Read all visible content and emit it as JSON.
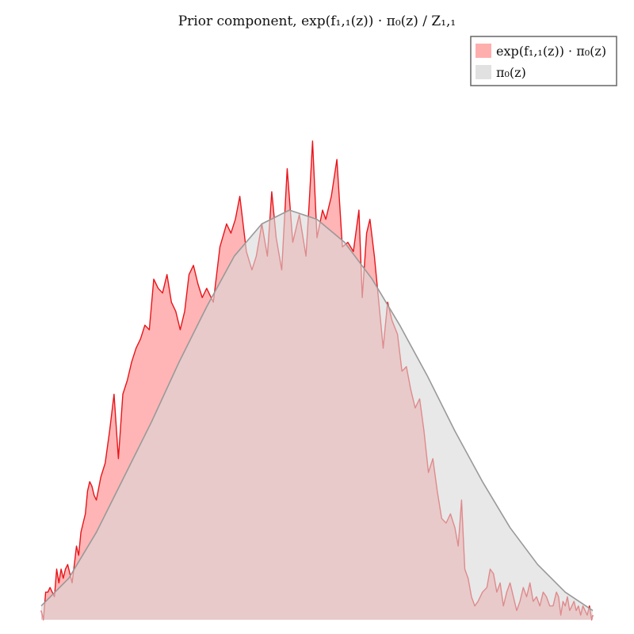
{
  "chart_data": {
    "type": "area",
    "title": "Prior component, exp(f₁,₁(z)) · π₀(z) / Z₁,₁",
    "xlabel": "",
    "ylabel": "",
    "axes_visible": false,
    "grid": false,
    "legend_position": "top-right",
    "xlim": [
      0,
      1
    ],
    "ylim": [
      0,
      1.04
    ],
    "series": [
      {
        "name": "exp(f₁,₁(z)) · π₀(z)",
        "color": "#ff6b6b",
        "fill_opacity": 0.5,
        "line_color": "#e8141a",
        "x": [
          0.0,
          0.004,
          0.008,
          0.012,
          0.016,
          0.02,
          0.024,
          0.028,
          0.032,
          0.036,
          0.04,
          0.044,
          0.048,
          0.052,
          0.056,
          0.06,
          0.064,
          0.068,
          0.072,
          0.076,
          0.08,
          0.084,
          0.088,
          0.092,
          0.096,
          0.1,
          0.108,
          0.116,
          0.124,
          0.132,
          0.14,
          0.148,
          0.156,
          0.164,
          0.172,
          0.18,
          0.188,
          0.196,
          0.204,
          0.212,
          0.22,
          0.228,
          0.236,
          0.244,
          0.252,
          0.26,
          0.268,
          0.276,
          0.284,
          0.292,
          0.3,
          0.312,
          0.324,
          0.336,
          0.344,
          0.352,
          0.36,
          0.372,
          0.382,
          0.39,
          0.4,
          0.41,
          0.418,
          0.426,
          0.436,
          0.446,
          0.456,
          0.468,
          0.48,
          0.486,
          0.492,
          0.5,
          0.51,
          0.516,
          0.526,
          0.536,
          0.546,
          0.556,
          0.566,
          0.576,
          0.582,
          0.59,
          0.596,
          0.604,
          0.612,
          0.62,
          0.628,
          0.636,
          0.646,
          0.654,
          0.662,
          0.67,
          0.678,
          0.686,
          0.694,
          0.702,
          0.71,
          0.718,
          0.726,
          0.734,
          0.742,
          0.75,
          0.756,
          0.762,
          0.768,
          0.774,
          0.78,
          0.786,
          0.792,
          0.8,
          0.808,
          0.814,
          0.82,
          0.826,
          0.832,
          0.838,
          0.844,
          0.85,
          0.856,
          0.862,
          0.868,
          0.874,
          0.88,
          0.886,
          0.892,
          0.898,
          0.904,
          0.91,
          0.916,
          0.922,
          0.928,
          0.934,
          0.938,
          0.942,
          0.946,
          0.95,
          0.954,
          0.958,
          0.962,
          0.966,
          0.97,
          0.974,
          0.978,
          0.982,
          0.986,
          0.99,
          0.994,
          0.998,
          1.0
        ],
        "y": [
          0.02,
          0.0,
          0.06,
          0.06,
          0.07,
          0.06,
          0.05,
          0.11,
          0.08,
          0.11,
          0.09,
          0.11,
          0.12,
          0.1,
          0.08,
          0.12,
          0.16,
          0.14,
          0.19,
          0.21,
          0.23,
          0.28,
          0.3,
          0.29,
          0.27,
          0.26,
          0.31,
          0.34,
          0.41,
          0.49,
          0.35,
          0.49,
          0.52,
          0.56,
          0.59,
          0.61,
          0.64,
          0.63,
          0.74,
          0.72,
          0.71,
          0.75,
          0.69,
          0.67,
          0.63,
          0.67,
          0.75,
          0.77,
          0.73,
          0.7,
          0.72,
          0.69,
          0.81,
          0.86,
          0.84,
          0.87,
          0.92,
          0.8,
          0.76,
          0.79,
          0.86,
          0.79,
          0.93,
          0.83,
          0.76,
          0.98,
          0.82,
          0.88,
          0.79,
          0.91,
          1.04,
          0.83,
          0.89,
          0.87,
          0.92,
          1.0,
          0.81,
          0.82,
          0.8,
          0.89,
          0.7,
          0.84,
          0.87,
          0.79,
          0.69,
          0.59,
          0.69,
          0.65,
          0.62,
          0.54,
          0.55,
          0.5,
          0.46,
          0.48,
          0.41,
          0.32,
          0.35,
          0.28,
          0.22,
          0.21,
          0.23,
          0.2,
          0.16,
          0.26,
          0.11,
          0.09,
          0.05,
          0.03,
          0.04,
          0.06,
          0.07,
          0.11,
          0.1,
          0.06,
          0.08,
          0.03,
          0.06,
          0.08,
          0.05,
          0.02,
          0.04,
          0.07,
          0.05,
          0.08,
          0.04,
          0.05,
          0.03,
          0.06,
          0.05,
          0.03,
          0.03,
          0.06,
          0.05,
          0.01,
          0.04,
          0.03,
          0.05,
          0.02,
          0.03,
          0.04,
          0.02,
          0.03,
          0.01,
          0.03,
          0.02,
          0.01,
          0.03,
          0.0,
          0.01
        ]
      },
      {
        "name": "π₀(z)",
        "color": "#d9d9d9",
        "fill_opacity": 0.6,
        "line_color": "#999999",
        "x": [
          0.0,
          0.05,
          0.1,
          0.15,
          0.2,
          0.25,
          0.3,
          0.35,
          0.4,
          0.45,
          0.5,
          0.55,
          0.6,
          0.65,
          0.7,
          0.75,
          0.8,
          0.85,
          0.9,
          0.95,
          1.0
        ],
        "y": [
          0.03,
          0.09,
          0.19,
          0.31,
          0.43,
          0.56,
          0.68,
          0.79,
          0.86,
          0.89,
          0.87,
          0.82,
          0.74,
          0.64,
          0.53,
          0.41,
          0.3,
          0.2,
          0.12,
          0.06,
          0.02
        ]
      }
    ]
  }
}
